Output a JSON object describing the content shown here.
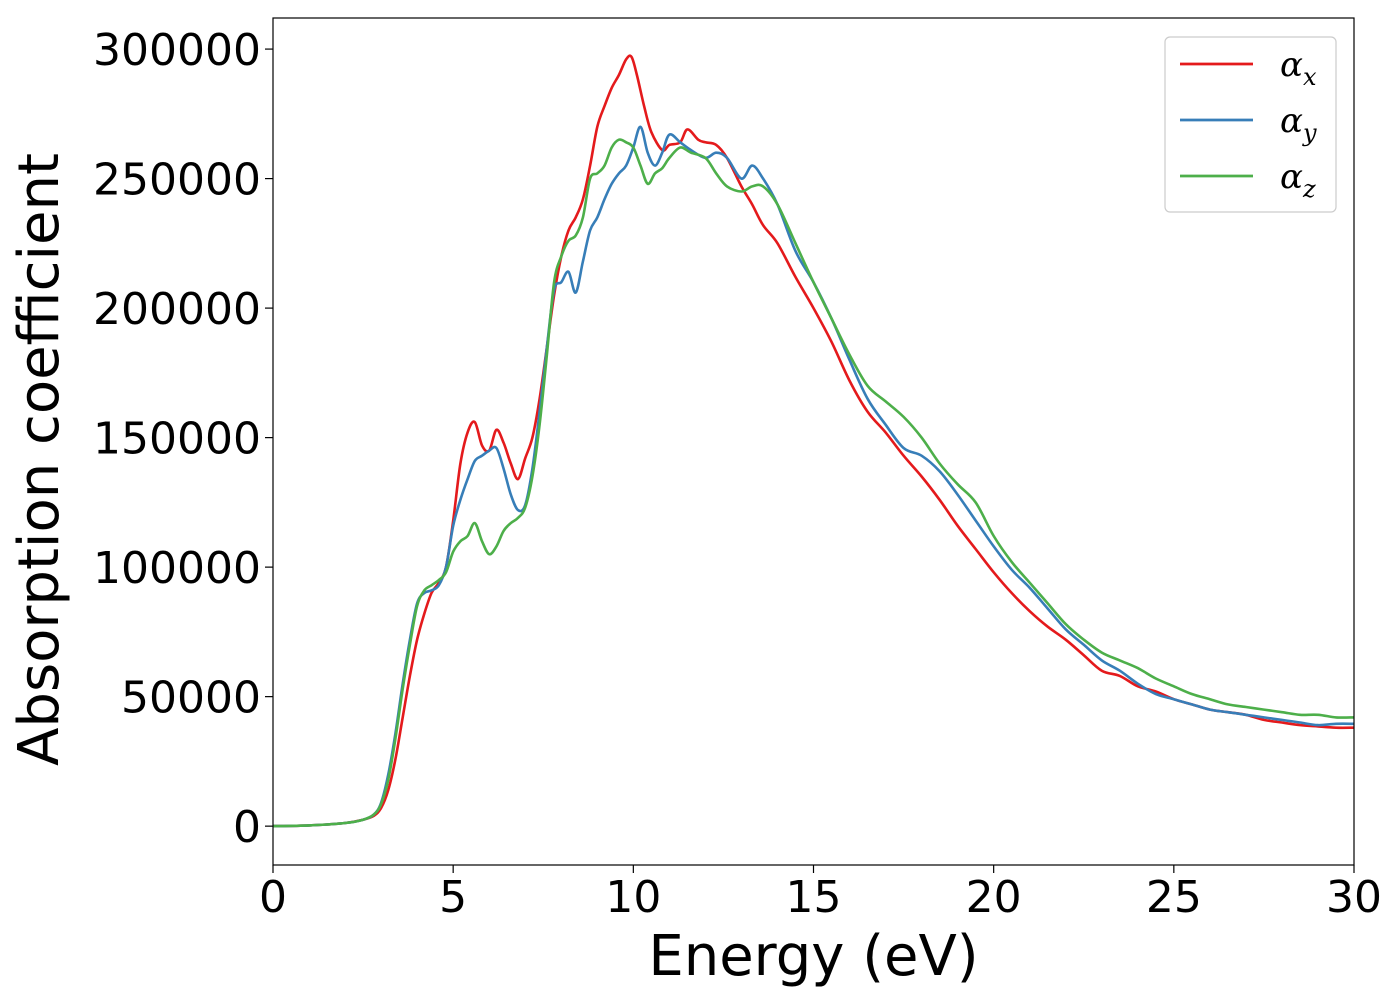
{
  "chart_data": {
    "type": "line",
    "xlabel": "Energy (eV)",
    "ylabel": "Absorption coefficient",
    "xlim": [
      0,
      30
    ],
    "ylim": [
      -15000,
      312000
    ],
    "xticks": [
      0,
      5,
      10,
      15,
      20,
      25,
      30
    ],
    "xtick_labels": [
      "0",
      "5",
      "10",
      "15",
      "20",
      "25",
      "30"
    ],
    "yticks": [
      0,
      50000,
      100000,
      150000,
      200000,
      250000,
      300000
    ],
    "ytick_labels": [
      "0",
      "50000",
      "100000",
      "150000",
      "200000",
      "250000",
      "300000"
    ],
    "grid": false,
    "legend_position": "top-right",
    "series": [
      {
        "name": "αx",
        "symbol": "α",
        "subscript": "x",
        "color": "#e41a1c",
        "x": [
          0,
          1,
          2,
          2.5,
          2.8,
          3.0,
          3.2,
          3.4,
          3.6,
          3.8,
          4.0,
          4.2,
          4.4,
          4.6,
          4.8,
          5.0,
          5.2,
          5.4,
          5.6,
          5.8,
          6.0,
          6.2,
          6.4,
          6.6,
          6.8,
          7.0,
          7.2,
          7.4,
          7.6,
          7.8,
          8.0,
          8.2,
          8.4,
          8.6,
          8.8,
          9.0,
          9.2,
          9.4,
          9.6,
          9.8,
          9.95,
          10.1,
          10.3,
          10.5,
          10.8,
          11.0,
          11.3,
          11.5,
          11.8,
          12.0,
          12.3,
          12.6,
          13.0,
          13.3,
          13.6,
          14.0,
          14.5,
          15.0,
          15.5,
          16.0,
          16.5,
          17.0,
          17.5,
          18.0,
          18.5,
          19.0,
          19.5,
          20.0,
          20.5,
          21.0,
          21.5,
          22.0,
          22.5,
          23.0,
          23.5,
          24.0,
          24.5,
          25.0,
          25.5,
          26.0,
          26.5,
          27.0,
          27.5,
          28.0,
          28.5,
          29.0,
          29.5,
          30.0
        ],
        "y": [
          0,
          300,
          1200,
          2500,
          4000,
          7000,
          14000,
          26000,
          42000,
          58000,
          72000,
          82000,
          90000,
          94000,
          100000,
          118000,
          140000,
          152000,
          156000,
          147000,
          145000,
          153000,
          148000,
          140000,
          134000,
          142000,
          150000,
          165000,
          185000,
          205000,
          220000,
          230000,
          235000,
          242000,
          255000,
          270000,
          278000,
          285000,
          290000,
          296000,
          297000,
          290000,
          278000,
          268000,
          261000,
          263000,
          264000,
          269000,
          265000,
          264000,
          263000,
          258000,
          247000,
          240000,
          232000,
          225000,
          212000,
          200000,
          187000,
          172000,
          160000,
          152000,
          143000,
          135000,
          126000,
          116000,
          107000,
          98000,
          90000,
          83000,
          77000,
          72000,
          66000,
          60000,
          58000,
          54000,
          52000,
          49000,
          47000,
          45000,
          44000,
          43000,
          41000,
          40000,
          39000,
          38500,
          38000,
          38000
        ]
      },
      {
        "name": "αy",
        "symbol": "α",
        "subscript": "y",
        "color": "#377eb8",
        "x": [
          0,
          1,
          2,
          2.5,
          2.8,
          3.0,
          3.2,
          3.4,
          3.6,
          3.8,
          4.0,
          4.2,
          4.4,
          4.6,
          4.8,
          5.0,
          5.2,
          5.4,
          5.6,
          5.8,
          6.0,
          6.2,
          6.4,
          6.6,
          6.8,
          7.0,
          7.2,
          7.4,
          7.6,
          7.8,
          8.0,
          8.2,
          8.4,
          8.6,
          8.8,
          9.0,
          9.2,
          9.4,
          9.6,
          9.8,
          10.0,
          10.2,
          10.4,
          10.6,
          10.8,
          11.0,
          11.3,
          11.6,
          12.0,
          12.3,
          12.6,
          13.0,
          13.3,
          13.6,
          14.0,
          14.5,
          15.0,
          15.5,
          16.0,
          16.5,
          17.0,
          17.5,
          18.0,
          18.5,
          19.0,
          19.5,
          20.0,
          20.5,
          21.0,
          21.5,
          22.0,
          22.5,
          23.0,
          23.5,
          24.0,
          24.5,
          25.0,
          25.5,
          26.0,
          26.5,
          27.0,
          27.5,
          28.0,
          28.5,
          29.0,
          29.5,
          30.0
        ],
        "y": [
          0,
          300,
          1200,
          2500,
          4500,
          9000,
          20000,
          36000,
          55000,
          72000,
          86000,
          90000,
          91000,
          93000,
          100000,
          116000,
          126000,
          134000,
          141000,
          143000,
          145000,
          146000,
          138000,
          128000,
          122000,
          124000,
          138000,
          160000,
          185000,
          207000,
          210000,
          214000,
          206000,
          218000,
          230000,
          235000,
          242000,
          248000,
          252000,
          255000,
          262000,
          270000,
          260000,
          255000,
          260000,
          267000,
          264000,
          261000,
          258000,
          260000,
          258000,
          250000,
          255000,
          250000,
          240000,
          222000,
          210000,
          196000,
          180000,
          165000,
          155000,
          146000,
          143000,
          137000,
          128000,
          118000,
          108000,
          99000,
          92000,
          84000,
          76000,
          70000,
          64000,
          60000,
          55000,
          51000,
          49000,
          47000,
          45000,
          44000,
          43000,
          42000,
          41000,
          40000,
          39000,
          39500,
          39500
        ]
      },
      {
        "name": "αz",
        "symbol": "α",
        "subscript": "z",
        "color": "#4daf4a",
        "x": [
          0,
          1,
          2,
          2.5,
          2.8,
          3.0,
          3.2,
          3.4,
          3.6,
          3.8,
          4.0,
          4.2,
          4.4,
          4.6,
          4.8,
          5.0,
          5.2,
          5.4,
          5.6,
          5.8,
          6.0,
          6.2,
          6.4,
          6.6,
          6.8,
          7.0,
          7.2,
          7.4,
          7.6,
          7.8,
          8.0,
          8.2,
          8.4,
          8.6,
          8.8,
          9.0,
          9.2,
          9.4,
          9.6,
          9.8,
          10.0,
          10.2,
          10.4,
          10.6,
          10.8,
          11.0,
          11.3,
          11.6,
          12.0,
          12.3,
          12.6,
          13.0,
          13.3,
          13.6,
          14.0,
          14.5,
          15.0,
          15.5,
          16.0,
          16.5,
          17.0,
          17.5,
          18.0,
          18.5,
          19.0,
          19.5,
          20.0,
          20.5,
          21.0,
          21.5,
          22.0,
          22.5,
          23.0,
          23.5,
          24.0,
          24.5,
          25.0,
          25.5,
          26.0,
          26.5,
          27.0,
          27.5,
          28.0,
          28.5,
          29.0,
          29.5,
          30.0
        ],
        "y": [
          0,
          300,
          1200,
          2500,
          4500,
          8500,
          18000,
          34000,
          53000,
          70000,
          85000,
          91000,
          93000,
          95000,
          98000,
          106000,
          110000,
          112000,
          117000,
          110000,
          105000,
          108000,
          114000,
          117000,
          119000,
          123000,
          135000,
          155000,
          182000,
          210000,
          220000,
          226000,
          228000,
          235000,
          250000,
          252000,
          255000,
          262000,
          265000,
          264000,
          262000,
          255000,
          248000,
          252000,
          254000,
          258000,
          262000,
          260000,
          258000,
          252000,
          247000,
          245000,
          247000,
          247000,
          240000,
          225000,
          210000,
          196000,
          182000,
          170000,
          164000,
          158000,
          150000,
          140000,
          132000,
          125000,
          112000,
          102000,
          94000,
          86000,
          78000,
          72000,
          67000,
          64000,
          61000,
          57000,
          54000,
          51000,
          49000,
          47000,
          46000,
          45000,
          44000,
          43000,
          43000,
          42000,
          42000
        ]
      }
    ]
  }
}
